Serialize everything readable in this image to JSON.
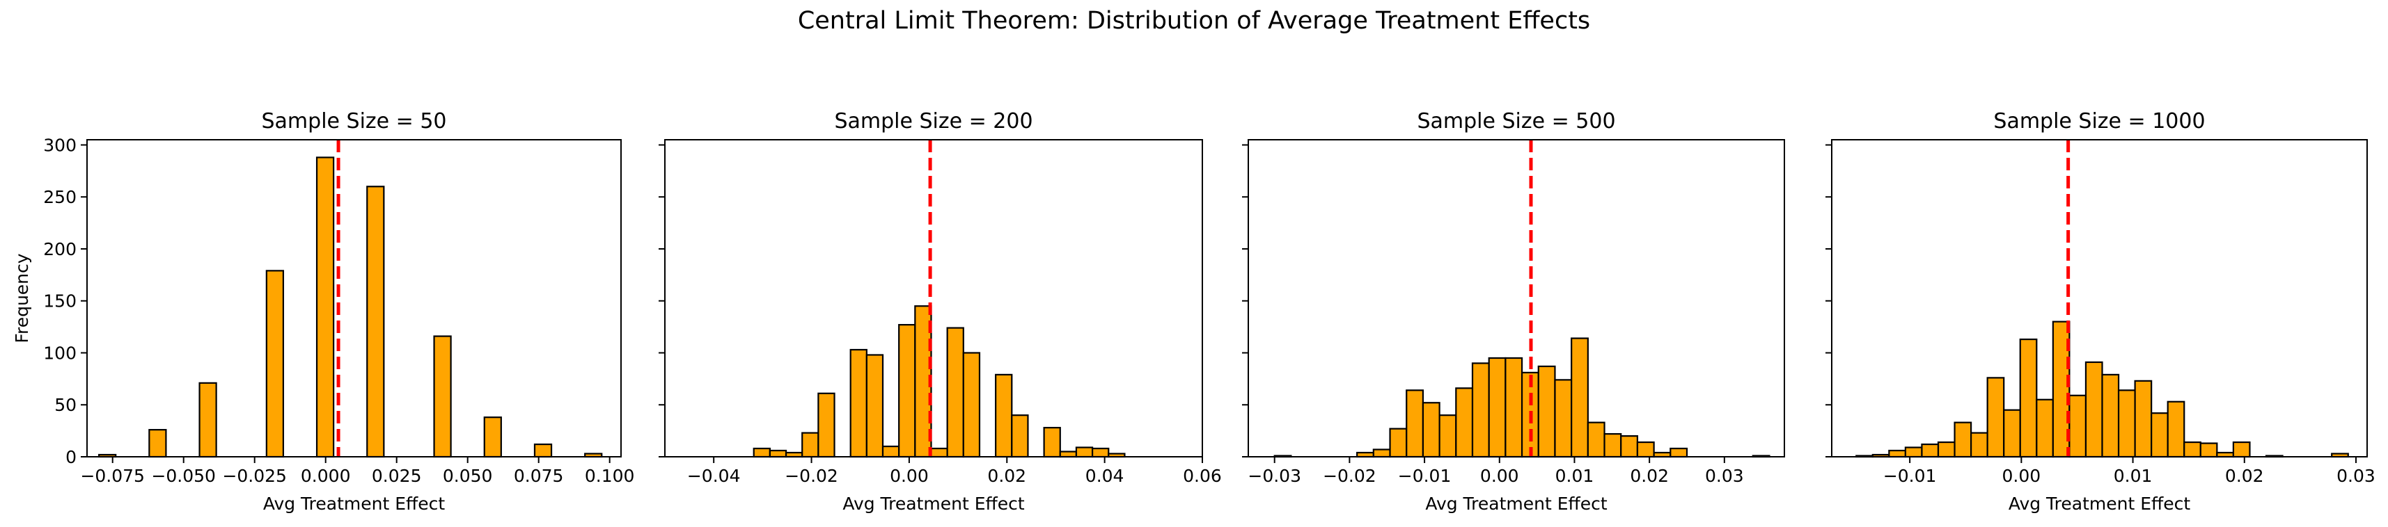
{
  "figure": {
    "suptitle": "Central Limit Theorem: Distribution of Average Treatment Effects",
    "bar_color": "#FFA500",
    "edge_color": "#000000",
    "mean_line_color": "#FF0000"
  },
  "chart_data": [
    {
      "type": "bar",
      "title": "Sample Size = 50",
      "xlabel": "Avg Treatment Effect",
      "ylabel": "Frequency",
      "xlim": [
        -0.084,
        0.104
      ],
      "ylim": [
        0,
        305
      ],
      "xticks": [
        -0.075,
        -0.05,
        -0.025,
        0.0,
        0.025,
        0.05,
        0.075,
        0.1
      ],
      "xtick_labels": [
        "−0.075",
        "−0.050",
        "−0.025",
        "0.000",
        "0.025",
        "0.050",
        "0.075",
        "0.100"
      ],
      "yticks": [
        0,
        50,
        100,
        150,
        200,
        250,
        300
      ],
      "ytick_labels": [
        "0",
        "50",
        "100",
        "150",
        "200",
        "250",
        "300"
      ],
      "bin_start": -0.0798,
      "bin_width": 0.0059,
      "values": [
        2,
        0,
        0,
        26,
        0,
        0,
        71,
        0,
        0,
        0,
        179,
        0,
        0,
        288,
        0,
        0,
        260,
        0,
        0,
        0,
        116,
        0,
        0,
        38,
        0,
        0,
        12,
        0,
        0,
        3
      ],
      "mean_line": 0.0045
    },
    {
      "type": "bar",
      "title": "Sample Size = 200",
      "xlabel": "Avg Treatment Effect",
      "ylabel": "",
      "xlim": [
        -0.05,
        0.06
      ],
      "ylim": [
        0,
        305
      ],
      "xticks": [
        -0.04,
        -0.02,
        0.0,
        0.02,
        0.04,
        0.06
      ],
      "xtick_labels": [
        "−0.04",
        "−0.02",
        "0.00",
        "0.02",
        "0.04",
        "0.06"
      ],
      "bin_start": -0.045,
      "bin_width": 0.0033,
      "values": [
        0,
        0,
        0,
        0,
        8,
        6,
        4,
        23,
        61,
        0,
        103,
        98,
        10,
        127,
        145,
        8,
        124,
        100,
        0,
        79,
        40,
        0,
        28,
        5,
        9,
        8,
        3,
        0,
        0,
        0
      ],
      "mean_line": 0.0043
    },
    {
      "type": "bar",
      "title": "Sample Size = 500",
      "xlabel": "Avg Treatment Effect",
      "ylabel": "",
      "xlim": [
        -0.0335,
        0.038
      ],
      "ylim": [
        0,
        305
      ],
      "xticks": [
        -0.03,
        -0.02,
        -0.01,
        0.0,
        0.01,
        0.02,
        0.03
      ],
      "xtick_labels": [
        "−0.03",
        "−0.02",
        "−0.01",
        "0.00",
        "0.01",
        "0.02",
        "0.03"
      ],
      "bin_start": -0.03,
      "bin_width": 0.0022,
      "values": [
        1,
        0,
        0,
        0,
        0,
        4,
        7,
        27,
        64,
        52,
        40,
        66,
        90,
        95,
        95,
        81,
        87,
        74,
        114,
        33,
        22,
        20,
        14,
        4,
        8,
        0,
        0,
        0,
        0,
        1
      ],
      "mean_line": 0.0042
    },
    {
      "type": "bar",
      "title": "Sample Size = 1000",
      "xlabel": "Avg Treatment Effect",
      "ylabel": "",
      "xlim": [
        -0.017,
        0.031
      ],
      "ylim": [
        0,
        305
      ],
      "xticks": [
        -0.01,
        0.0,
        0.01,
        0.02,
        0.03
      ],
      "xtick_labels": [
        "−0.01",
        "0.00",
        "0.01",
        "0.02",
        "0.03"
      ],
      "bin_start": -0.0148,
      "bin_width": 0.00147,
      "values": [
        1,
        2,
        6,
        9,
        12,
        14,
        33,
        23,
        76,
        45,
        113,
        55,
        130,
        59,
        91,
        79,
        64,
        73,
        42,
        53,
        14,
        13,
        4,
        14,
        0,
        1,
        0,
        0,
        0,
        3
      ],
      "mean_line": 0.0042
    }
  ]
}
